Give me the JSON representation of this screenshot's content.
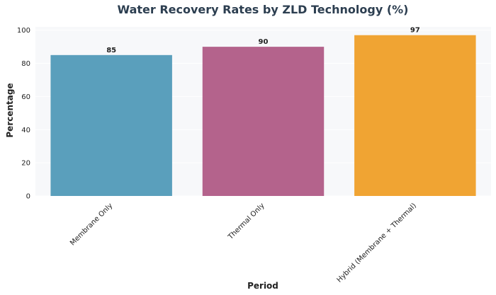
{
  "chart_data": {
    "type": "bar",
    "title": "Water Recovery Rates by ZLD Technology (%)",
    "xlabel": "Period",
    "ylabel": "Percentage",
    "categories": [
      "Membrane Only",
      "Thermal Only",
      "Hybrid (Membrane + Thermal)"
    ],
    "values": [
      85,
      90,
      97
    ],
    "colors": [
      "#5a9fbc",
      "#b4638c",
      "#f0a433"
    ],
    "ylim": [
      0,
      102
    ],
    "yticks": [
      0,
      20,
      40,
      60,
      80,
      100
    ],
    "grid": true,
    "data_labels": true
  }
}
